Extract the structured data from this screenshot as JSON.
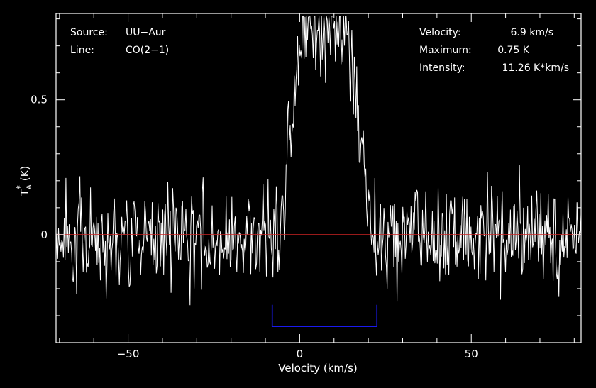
{
  "chart_data": {
    "type": "line",
    "title": "",
    "xlabel": "Velocity (km/s)",
    "ylabel_main": "T",
    "ylabel_sup": "*",
    "ylabel_sub": "A",
    "ylabel_unit": "(K)",
    "xlim": [
      -71,
      82
    ],
    "ylim": [
      -0.4,
      0.82
    ],
    "xticks": [
      -50,
      0,
      50
    ],
    "xtick_labels": [
      "−50",
      "0",
      "50"
    ],
    "yticks": [
      0,
      0.5
    ],
    "ytick_labels": [
      "0",
      "0.5"
    ],
    "grid": false,
    "legend": "none",
    "colors": {
      "background": "#000000",
      "spectrum": "#ffffff",
      "baseline": "#cc2222",
      "window": "#1a1aee",
      "axes": "#ffffff"
    },
    "info_left": [
      {
        "key": "Source:",
        "value": "UU−Aur"
      },
      {
        "key": "Line:",
        "value": "CO(2−1)"
      }
    ],
    "info_right": [
      {
        "key": "Velocity:",
        "value": "6.9 km/s"
      },
      {
        "key": "Maximum:",
        "value": "0.75 K"
      },
      {
        "key": "Intensity:",
        "value": "11.26 K*km/s"
      }
    ],
    "baseline_y": 0,
    "integration_window": {
      "x_start": -8,
      "x_end": 22.5,
      "y_bottom": -0.34,
      "y_top": -0.26
    },
    "series": [
      {
        "line_profile": {
          "velocity_center": 6.9,
          "peak": 0.75,
          "plateau_from": 0,
          "plateau_to": 14,
          "rise_from": -6,
          "fall_to": 21,
          "noise_rms": 0.1,
          "seed": 7
        },
        "x_start": -71,
        "x_end": 82,
        "n_points": 640
      }
    ]
  }
}
